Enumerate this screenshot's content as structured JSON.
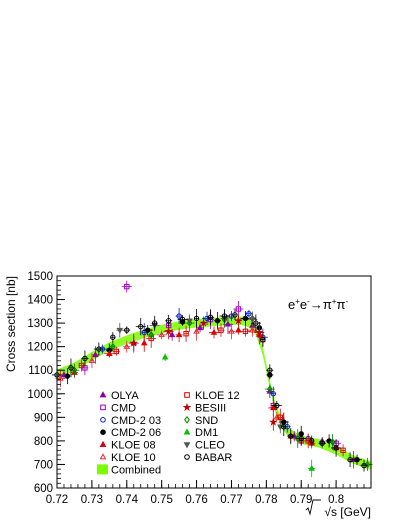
{
  "chart_data": {
    "type": "scatter",
    "ylabel": "Cross section  [nb]",
    "xlabel": "√s  [GeV]",
    "xlim": [
      0.72,
      0.81
    ],
    "ylim": [
      600,
      1500
    ],
    "xticks": [
      "0.72",
      "0.73",
      "0.74",
      "0.75",
      "0.76",
      "0.77",
      "0.78",
      "0.79",
      "0.8"
    ],
    "yticks": [
      "600",
      "700",
      "800",
      "900",
      "1000",
      "1100",
      "1200",
      "1300",
      "1400",
      "1500"
    ],
    "xtick_values": [
      0.72,
      0.73,
      0.74,
      0.75,
      0.76,
      0.77,
      0.78,
      0.79,
      0.8
    ],
    "ytick_values": [
      600,
      700,
      800,
      900,
      1000,
      1100,
      1200,
      1300,
      1400,
      1500
    ],
    "grid": false,
    "legend_position": "bottom-left",
    "annotation": {
      "parts": [
        {
          "text": "e",
          "sup": false
        },
        {
          "text": "+",
          "sup": true
        },
        {
          "text": "e",
          "sup": false
        },
        {
          "text": "-",
          "sup": true
        },
        {
          "text": "→π",
          "sup": false
        },
        {
          "text": "+",
          "sup": true
        },
        {
          "text": "π",
          "sup": false
        },
        {
          "text": "-",
          "sup": true
        }
      ]
    },
    "combined_band": {
      "name": "Combined",
      "color": "#7CFC00",
      "x": [
        0.72,
        0.725,
        0.73,
        0.735,
        0.74,
        0.745,
        0.75,
        0.755,
        0.76,
        0.765,
        0.77,
        0.773,
        0.775,
        0.777,
        0.779,
        0.781,
        0.783,
        0.786,
        0.79,
        0.795,
        0.8,
        0.805,
        0.81
      ],
      "y": [
        1085,
        1115,
        1160,
        1200,
        1230,
        1255,
        1275,
        1290,
        1300,
        1305,
        1310,
        1310,
        1300,
        1270,
        1180,
        1040,
        920,
        840,
        805,
        790,
        760,
        720,
        695
      ],
      "half_width": 18
    },
    "series": [
      {
        "name": "OLYA",
        "color": "#8b00a0",
        "marker": "triangle-up",
        "filled": true,
        "x": [
          0.722,
          0.731,
          0.742,
          0.753,
          0.761,
          0.769,
          0.776,
          0.781,
          0.788,
          0.796,
          0.805
        ],
        "y": [
          1080,
          1165,
          1215,
          1250,
          1280,
          1295,
          1290,
          1010,
          820,
          800,
          720
        ]
      },
      {
        "name": "CMD",
        "color": "#a000c0",
        "marker": "square",
        "filled": false,
        "x": [
          0.728,
          0.74,
          0.752,
          0.764,
          0.772,
          0.782,
          0.79,
          0.8
        ],
        "y": [
          1110,
          1455,
          1290,
          1315,
          1360,
          950,
          800,
          790
        ]
      },
      {
        "name": "CMD-2 03",
        "color": "#0020d0",
        "marker": "circle",
        "filled": false,
        "x": [
          0.733,
          0.745,
          0.755,
          0.763,
          0.77,
          0.775,
          0.779,
          0.782,
          0.786,
          0.792
        ],
        "y": [
          1190,
          1260,
          1330,
          1320,
          1330,
          1340,
          1240,
          1000,
          860,
          810
        ]
      },
      {
        "name": "CMD-2 06",
        "color": "#000000",
        "marker": "circle",
        "filled": true,
        "x": [
          0.723,
          0.735,
          0.746,
          0.756,
          0.766,
          0.774,
          0.778,
          0.781,
          0.785,
          0.79,
          0.798,
          0.806
        ],
        "y": [
          1075,
          1185,
          1270,
          1305,
          1310,
          1320,
          1280,
          1080,
          880,
          830,
          800,
          720
        ]
      },
      {
        "name": "KLOE 08",
        "color": "#e00000",
        "marker": "triangle-up",
        "filled": true,
        "x": [
          0.725,
          0.735,
          0.745,
          0.755,
          0.765,
          0.772,
          0.778,
          0.782,
          0.787,
          0.793,
          0.8
        ],
        "y": [
          1090,
          1170,
          1215,
          1250,
          1260,
          1270,
          1250,
          940,
          820,
          790,
          770
        ]
      },
      {
        "name": "KLOE 10",
        "color": "#e03030",
        "marker": "triangle-up",
        "filled": false,
        "x": [
          0.721,
          0.73,
          0.74,
          0.75,
          0.76,
          0.77,
          0.776,
          0.783,
          0.79
        ],
        "y": [
          1065,
          1140,
          1200,
          1250,
          1265,
          1265,
          1270,
          900,
          800
        ]
      },
      {
        "name": "KLOE 12",
        "color": "#e00000",
        "marker": "square",
        "filled": false,
        "x": [
          0.727,
          0.737,
          0.747,
          0.757,
          0.767,
          0.774,
          0.779,
          0.784,
          0.792,
          0.802
        ],
        "y": [
          1120,
          1180,
          1235,
          1255,
          1270,
          1265,
          1230,
          900,
          800,
          760
        ]
      },
      {
        "name": "BESIII",
        "color": "#c00000",
        "marker": "star",
        "filled": true,
        "x": [
          0.742,
          0.752,
          0.762,
          0.772,
          0.778,
          0.782
        ],
        "y": [
          1215,
          1265,
          1300,
          1310,
          1260,
          880
        ]
      },
      {
        "name": "SND",
        "color": "#008000",
        "marker": "diamond",
        "filled": false,
        "x": [
          0.725,
          0.736,
          0.747,
          0.758,
          0.768,
          0.776,
          0.781,
          0.789,
          0.799,
          0.809
        ],
        "y": [
          1100,
          1200,
          1250,
          1300,
          1315,
          1320,
          1020,
          810,
          795,
          700
        ]
      },
      {
        "name": "DM1",
        "color": "#00c000",
        "marker": "triangle-up",
        "filled": true,
        "x": [
          0.751,
          0.793
        ],
        "y": [
          1155,
          683
        ]
      },
      {
        "name": "CLEO",
        "color": "#555555",
        "marker": "triangle-down",
        "filled": true,
        "x": [
          0.738,
          0.748,
          0.758,
          0.768,
          0.776,
          0.784,
          0.796
        ],
        "y": [
          1270,
          1290,
          1310,
          1320,
          1315,
          860,
          790
        ]
      },
      {
        "name": "BABAR",
        "color": "#000000",
        "marker": "circle",
        "filled": false,
        "x": [
          0.72,
          0.724,
          0.728,
          0.732,
          0.736,
          0.74,
          0.744,
          0.748,
          0.752,
          0.756,
          0.76,
          0.764,
          0.768,
          0.771,
          0.774,
          0.777,
          0.779,
          0.781,
          0.783,
          0.785,
          0.787,
          0.79,
          0.793,
          0.796,
          0.8,
          0.804,
          0.808
        ],
        "y": [
          1080,
          1110,
          1150,
          1190,
          1240,
          1270,
          1285,
          1300,
          1310,
          1315,
          1320,
          1325,
          1330,
          1335,
          1320,
          1300,
          1230,
          1100,
          950,
          860,
          820,
          810,
          800,
          790,
          770,
          720,
          695
        ]
      }
    ]
  }
}
